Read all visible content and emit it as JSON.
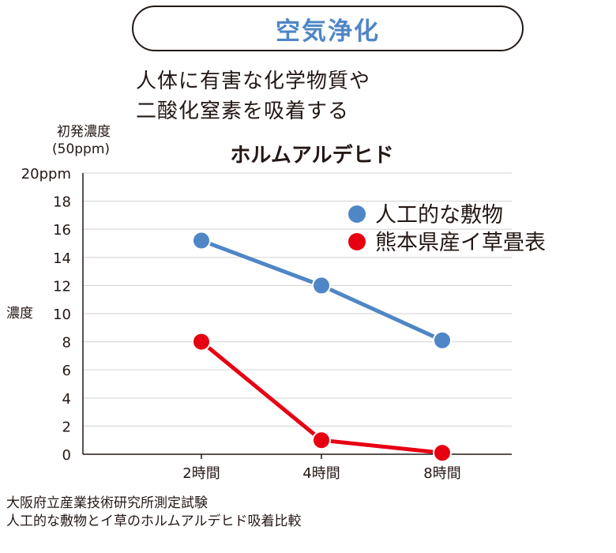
{
  "header": {
    "title": "空気浄化"
  },
  "description": [
    "人体に有害な化学物質や",
    "二酸化窒素を吸着する"
  ],
  "footnotes": [
    "大阪府立産業技術研究所測定試験",
    "人工的な敷物とイ草のホルムアルデヒド吸着比較"
  ],
  "chart_data": {
    "type": "line",
    "title": "ホルムアルデヒド",
    "initial_note": [
      "初発濃度",
      "(50ppm)"
    ],
    "ylabel": "濃度",
    "ylim": [
      0,
      20
    ],
    "y_ticks": [
      "0",
      "2",
      "4",
      "6",
      "8",
      "10",
      "12",
      "14",
      "16",
      "18",
      "20ppm"
    ],
    "categories": [
      "2時間",
      "4時間",
      "8時間"
    ],
    "grid": true,
    "legend_position": "top-right",
    "series": [
      {
        "name": "人工的な敷物",
        "color": "#4f86c6",
        "values": [
          15.2,
          12.0,
          8.1
        ]
      },
      {
        "name": "熊本県産イ草畳表",
        "color": "#e60012",
        "values": [
          8.0,
          1.0,
          0.1
        ]
      }
    ]
  }
}
